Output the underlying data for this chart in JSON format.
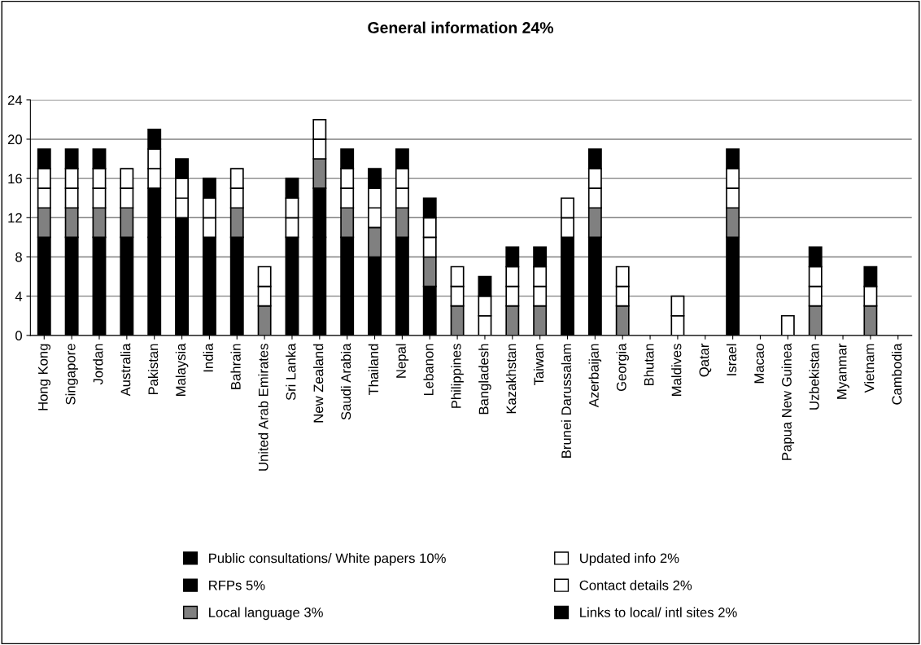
{
  "chart_data": {
    "type": "bar",
    "title": "General information 24%",
    "stacked": true,
    "categories": [
      "Hong Kong",
      "Singapore",
      "Jordan",
      "Australia",
      "Pakistan",
      "Malaysia",
      "India",
      "Bahrain",
      "United Arab Emirates",
      "Sri Lanka",
      "New Zealand",
      "Saudi Arabia",
      "Thailand",
      "Nepal",
      "Lebanon",
      "Philippines",
      "Bangladesh",
      "Kazakhstan",
      "Taiwan",
      "Brunei Darussalam",
      "Azerbaijan",
      "Georgia",
      "Bhutan",
      "Maldives",
      "Qatar",
      "Israel",
      "Macao",
      "Papua New Guinea",
      "Uzbekistan",
      "Myanmar",
      "Vietnam",
      "Cambodia"
    ],
    "series": [
      {
        "name": "Public consultations/ White papers 10%",
        "color": "#000000",
        "values": [
          10,
          10,
          10,
          10,
          10,
          10,
          10,
          10,
          null,
          10,
          10,
          10,
          8,
          10,
          5,
          null,
          null,
          null,
          null,
          10,
          10,
          null,
          null,
          null,
          null,
          10,
          null,
          null,
          null,
          null,
          null,
          null
        ]
      },
      {
        "name": "RFPs 5%",
        "color": "#000000",
        "values": [
          null,
          null,
          null,
          null,
          5,
          2,
          null,
          null,
          null,
          null,
          5,
          null,
          null,
          null,
          null,
          null,
          null,
          null,
          null,
          null,
          null,
          null,
          null,
          null,
          null,
          null,
          null,
          null,
          null,
          null,
          null,
          null
        ]
      },
      {
        "name": "Local language 3%",
        "color": "#808080",
        "values": [
          3,
          3,
          3,
          3,
          null,
          null,
          null,
          3,
          3,
          null,
          3,
          3,
          3,
          3,
          3,
          3,
          null,
          3,
          3,
          null,
          3,
          3,
          null,
          null,
          null,
          3,
          null,
          null,
          3,
          null,
          3,
          null
        ]
      },
      {
        "name": "Updated info 2%",
        "color": "#ffffff",
        "values": [
          2,
          2,
          2,
          2,
          2,
          2,
          2,
          2,
          2,
          2,
          2,
          2,
          2,
          2,
          2,
          2,
          2,
          2,
          2,
          2,
          2,
          2,
          null,
          2,
          null,
          2,
          null,
          2,
          2,
          null,
          null,
          null
        ]
      },
      {
        "name": "Contact details 2%",
        "color": "#ffffff",
        "values": [
          2,
          2,
          2,
          2,
          2,
          2,
          2,
          2,
          2,
          2,
          2,
          2,
          2,
          2,
          2,
          2,
          2,
          2,
          2,
          2,
          2,
          2,
          null,
          2,
          null,
          2,
          null,
          null,
          2,
          null,
          2,
          null
        ]
      },
      {
        "name": "Links to local/ intl sites 2%",
        "color": "#000000",
        "values": [
          2,
          2,
          2,
          null,
          2,
          2,
          2,
          null,
          null,
          2,
          null,
          2,
          2,
          2,
          2,
          null,
          2,
          2,
          2,
          null,
          2,
          null,
          null,
          null,
          null,
          2,
          null,
          null,
          2,
          null,
          2,
          null
        ]
      }
    ],
    "ylim": [
      0,
      24
    ],
    "yticks": [
      0,
      4,
      8,
      12,
      16,
      20,
      24
    ],
    "grid": "y",
    "legend": "bottom"
  }
}
